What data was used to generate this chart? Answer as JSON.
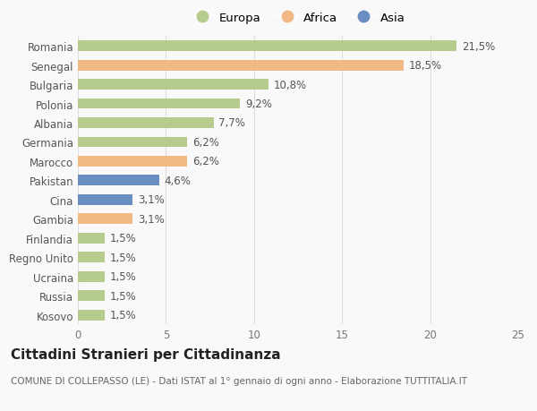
{
  "countries": [
    "Romania",
    "Senegal",
    "Bulgaria",
    "Polonia",
    "Albania",
    "Germania",
    "Marocco",
    "Pakistan",
    "Cina",
    "Gambia",
    "Finlandia",
    "Regno Unito",
    "Ucraina",
    "Russia",
    "Kosovo"
  ],
  "values": [
    21.5,
    18.5,
    10.8,
    9.2,
    7.7,
    6.2,
    6.2,
    4.6,
    3.1,
    3.1,
    1.5,
    1.5,
    1.5,
    1.5,
    1.5
  ],
  "labels": [
    "21,5%",
    "18,5%",
    "10,8%",
    "9,2%",
    "7,7%",
    "6,2%",
    "6,2%",
    "4,6%",
    "3,1%",
    "3,1%",
    "1,5%",
    "1,5%",
    "1,5%",
    "1,5%",
    "1,5%"
  ],
  "continents": [
    "Europa",
    "Africa",
    "Europa",
    "Europa",
    "Europa",
    "Europa",
    "Africa",
    "Asia",
    "Asia",
    "Africa",
    "Europa",
    "Europa",
    "Europa",
    "Europa",
    "Europa"
  ],
  "colors": {
    "Europa": "#b5cc8e",
    "Africa": "#f0b985",
    "Asia": "#6b8ec2"
  },
  "legend_labels": [
    "Europa",
    "Africa",
    "Asia"
  ],
  "xlim": [
    0,
    25
  ],
  "xticks": [
    0,
    5,
    10,
    15,
    20,
    25
  ],
  "title": "Cittadini Stranieri per Cittadinanza",
  "subtitle": "COMUNE DI COLLEPASSO (LE) - Dati ISTAT al 1° gennaio di ogni anno - Elaborazione TUTTITALIA.IT",
  "background_color": "#f9f9f9",
  "bar_height": 0.55,
  "label_fontsize": 8.5,
  "title_fontsize": 11,
  "subtitle_fontsize": 7.5,
  "ytick_fontsize": 8.5,
  "xtick_fontsize": 8.5
}
